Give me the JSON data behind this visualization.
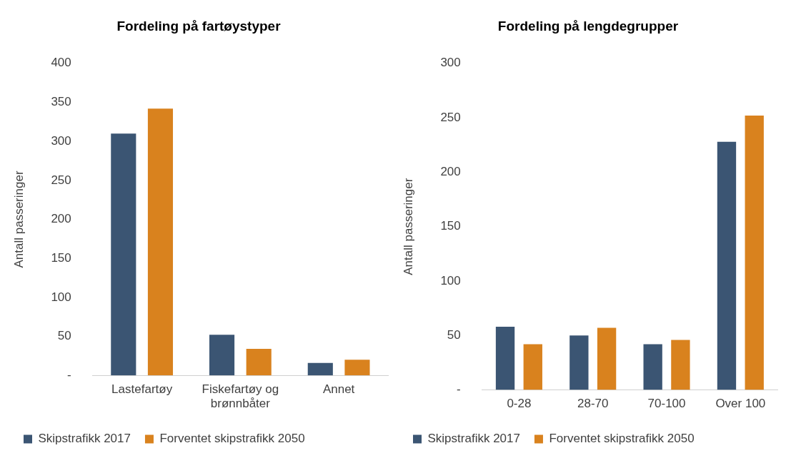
{
  "chart_data": [
    {
      "type": "bar",
      "title": "Fordeling på fartøystyper",
      "ylabel": "Antall passeringer",
      "categories": [
        "Lastefartøy",
        "Fiskefartøy og brønnbåter",
        "Annet"
      ],
      "series": [
        {
          "name": "Skipstrafikk 2017",
          "color": "#3b5573",
          "values": [
            310,
            52,
            16
          ]
        },
        {
          "name": "Forventet skipstrafikk 2050",
          "color": "#d9821e",
          "values": [
            342,
            34,
            20
          ]
        }
      ],
      "ylim": [
        0,
        400
      ],
      "yticks": [
        {
          "value": 0,
          "label": "-"
        },
        50,
        100,
        150,
        200,
        250,
        300,
        350,
        400
      ],
      "grid": false,
      "legend": "bottom"
    },
    {
      "type": "bar",
      "title": "Fordeling på lengdegrupper",
      "ylabel": "Antall passeringer",
      "categories": [
        "0-28",
        "28-70",
        "70-100",
        "Over 100"
      ],
      "series": [
        {
          "name": "Skipstrafikk 2017",
          "color": "#3b5573",
          "values": [
            58,
            50,
            42,
            228
          ]
        },
        {
          "name": "Forventet skipstrafikk 2050",
          "color": "#d9821e",
          "values": [
            42,
            57,
            46,
            252
          ]
        }
      ],
      "ylim": [
        0,
        300
      ],
      "yticks": [
        {
          "value": 0,
          "label": "-"
        },
        50,
        100,
        150,
        200,
        250,
        300
      ],
      "grid": false,
      "legend": "bottom"
    }
  ]
}
